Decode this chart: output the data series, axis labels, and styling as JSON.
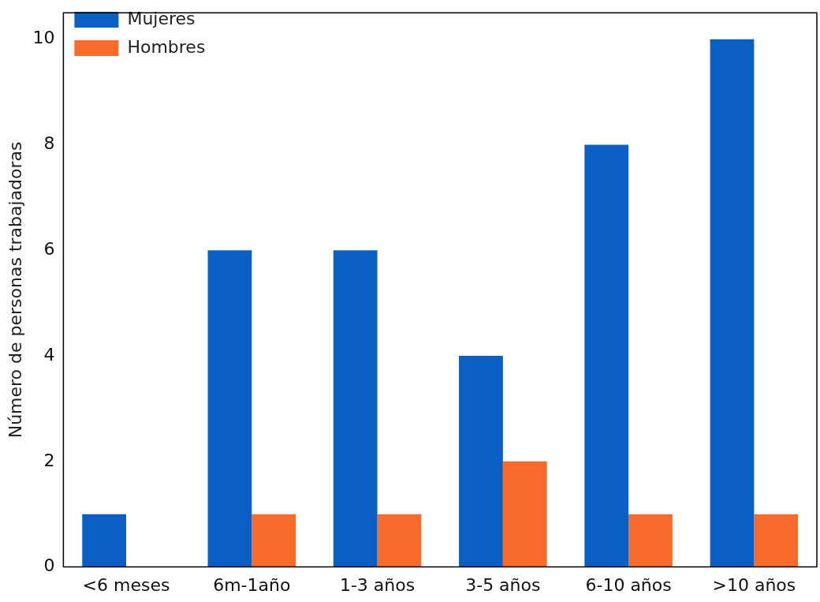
{
  "chart_data": {
    "type": "bar",
    "ylabel": "Número de personas trabajadoras",
    "categories": [
      "<6 meses",
      "6m-1año",
      "1-3 años",
      "3-5 años",
      "6-10 años",
      ">10 años"
    ],
    "series": [
      {
        "name": "Mujeres",
        "color": "#0a5fc4",
        "values": [
          1,
          6,
          6,
          4,
          8,
          10
        ]
      },
      {
        "name": "Hombres",
        "color": "#f96b2a",
        "values": [
          0,
          1,
          1,
          2,
          1,
          1
        ]
      }
    ],
    "ylim": [
      0,
      10.5
    ],
    "yticks": [
      0,
      2,
      4,
      6,
      8,
      10
    ],
    "grid": false,
    "legend": "top left"
  }
}
